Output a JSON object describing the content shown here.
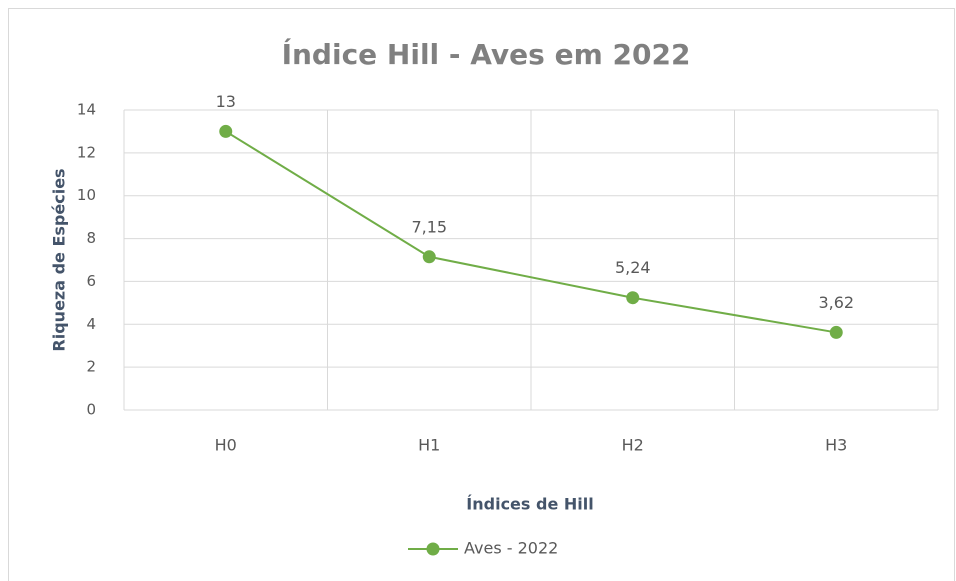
{
  "chart_data": {
    "type": "line",
    "title": "Índice Hill - Aves em 2022",
    "x_label": "Índices de Hill",
    "y_label": "Riqueza de Espécies",
    "categories": [
      "H0",
      "H1",
      "H2",
      "H3"
    ],
    "series": [
      {
        "name": "Aves - 2022",
        "color": "#70ad47",
        "values": [
          13,
          7.15,
          5.24,
          3.62
        ],
        "value_labels": [
          "13",
          "7,15",
          "5,24",
          "3,62"
        ]
      }
    ],
    "ylim": [
      0,
      14
    ],
    "yticks": [
      0,
      2,
      4,
      6,
      8,
      10,
      12,
      14
    ],
    "grid": true,
    "legend": "bottom"
  }
}
